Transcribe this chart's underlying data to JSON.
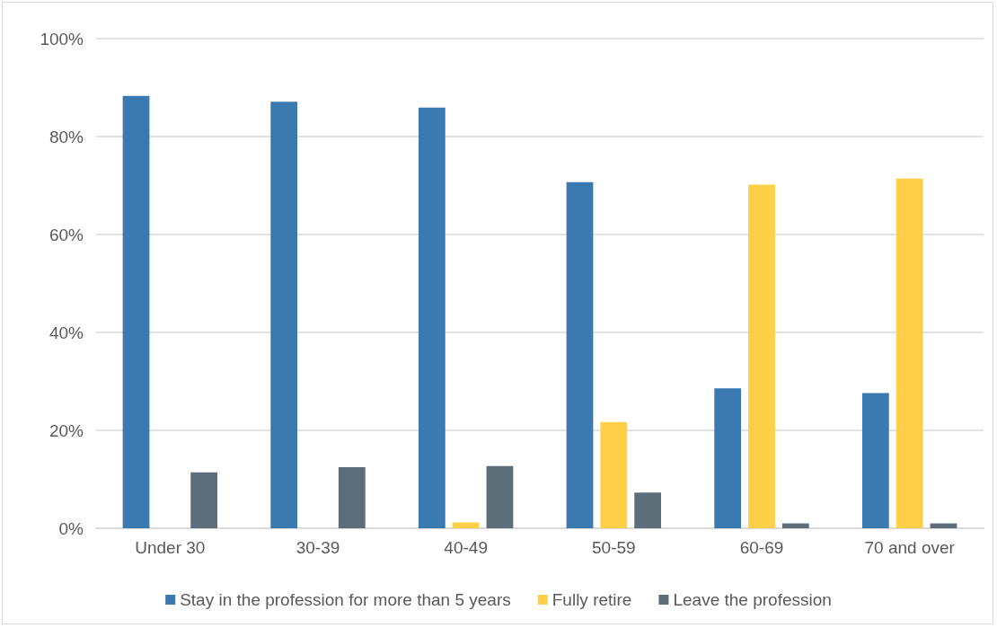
{
  "chart_data": {
    "type": "bar",
    "categories": [
      "Under 30",
      "30-39",
      "40-49",
      "50-59",
      "60-69",
      "70 and over"
    ],
    "series": [
      {
        "name": "Stay in the profession for more than 5 years",
        "color": "#3a7ab0",
        "values": [
          88.3,
          87.1,
          85.9,
          70.7,
          28.6,
          27.6
        ]
      },
      {
        "name": "Fully retire",
        "color": "#fecf47",
        "values": [
          0,
          0,
          1.2,
          21.7,
          70.2,
          71.4
        ]
      },
      {
        "name": "Leave the profession",
        "color": "#5b6e7a",
        "values": [
          11.4,
          12.5,
          12.7,
          7.3,
          1.0,
          1.0
        ]
      }
    ],
    "ylim": [
      0,
      100
    ],
    "yticks": [
      {
        "value": 0,
        "label": "0%"
      },
      {
        "value": 20,
        "label": "20%"
      },
      {
        "value": 40,
        "label": "40%"
      },
      {
        "value": 60,
        "label": "60%"
      },
      {
        "value": 80,
        "label": "80%"
      },
      {
        "value": 100,
        "label": "100%"
      }
    ],
    "grid": "y",
    "legend": "bottom"
  }
}
